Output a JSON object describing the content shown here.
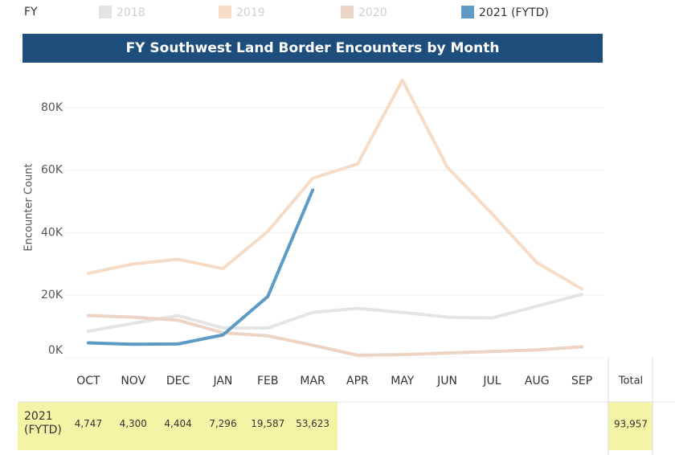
{
  "chart_data": {
    "type": "line",
    "legend_title": "FY",
    "title": "FY Southwest Land Border Encounters by Month",
    "y_label": "Encounter Count",
    "categories": [
      "OCT",
      "NOV",
      "DEC",
      "JAN",
      "FEB",
      "MAR",
      "APR",
      "MAY",
      "JUN",
      "JUL",
      "AUG",
      "SEP"
    ],
    "ylim": [
      0,
      90000
    ],
    "yticks": [
      {
        "value": 0,
        "label": "0K"
      },
      {
        "value": 20000,
        "label": "20K"
      },
      {
        "value": 40000,
        "label": "40K"
      },
      {
        "value": 60000,
        "label": "60K"
      },
      {
        "value": 80000,
        "label": "80K"
      }
    ],
    "grid": true,
    "series": [
      {
        "name": "2018",
        "color": "#e4e4e4",
        "values": [
          8500,
          11000,
          13500,
          9500,
          9500,
          14500,
          15800,
          14500,
          13000,
          12700,
          16500,
          20300
        ]
      },
      {
        "name": "2019",
        "color": "#f6dcc6",
        "values": [
          27000,
          30000,
          31500,
          28500,
          40400,
          57400,
          62000,
          88800,
          61000,
          46000,
          30400,
          22000
        ]
      },
      {
        "name": "2020",
        "color": "#ecd3c4",
        "values": [
          13500,
          13000,
          12000,
          8000,
          7000,
          4000,
          800,
          1000,
          1500,
          2000,
          2500,
          3500
        ]
      },
      {
        "name": "2021 (FYTD)",
        "color": "#5d9ac6",
        "values": [
          4747,
          4300,
          4404,
          7296,
          19587,
          53623,
          null,
          null,
          null,
          null,
          null,
          null
        ],
        "value_labels": [
          "4,747",
          "4,300",
          "4,404",
          "7,296",
          "19,587",
          "53,623",
          null,
          null,
          null,
          null,
          null,
          null
        ]
      }
    ],
    "total_header": "Total",
    "total": 93957,
    "total_label": "93,957"
  }
}
